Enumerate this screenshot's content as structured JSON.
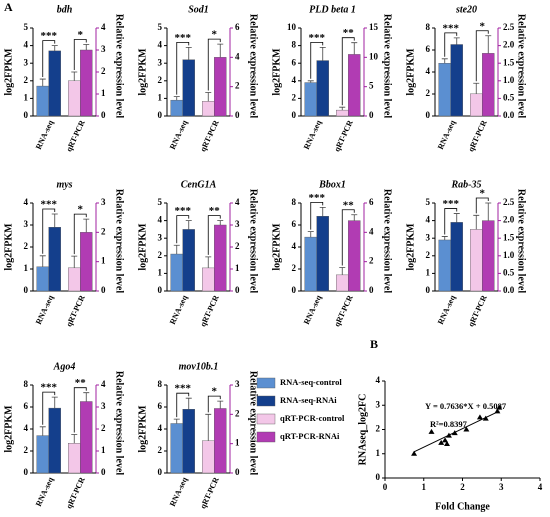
{
  "panel_labels": [
    "A",
    "B"
  ],
  "legend": [
    {
      "name": "RNA-seq-control",
      "color": "#5b8fd1"
    },
    {
      "name": "RNA-seq-RNAi",
      "color": "#143f8c"
    },
    {
      "name": "qRT-PCR-control",
      "color": "#f3c7e8"
    },
    {
      "name": "qRT-PCR-RNAi",
      "color": "#b13cb3"
    }
  ],
  "chart_data": [
    {
      "type": "bar",
      "title": "bdh",
      "ylabel": "log2FPKM",
      "y2label": "Relative expression level",
      "categories": [
        "RNA-seq",
        "qRT-PCR"
      ],
      "ylim": [
        0,
        5
      ],
      "yticks": [
        0,
        1,
        2,
        3,
        4,
        5
      ],
      "y2lim": [
        0,
        4
      ],
      "y2ticks": [
        0,
        1,
        2,
        3,
        4
      ],
      "annotations": [
        "***",
        "*"
      ],
      "series": [
        {
          "values": [
            1.7,
            null
          ],
          "errors": [
            0.4,
            null
          ]
        },
        {
          "values": [
            3.7,
            null
          ],
          "errors": [
            0.3,
            null
          ]
        },
        {
          "axis": "y2",
          "values": [
            null,
            1.6
          ],
          "errors": [
            null,
            0.4
          ]
        },
        {
          "axis": "y2",
          "values": [
            null,
            3.0
          ],
          "errors": [
            null,
            0.25
          ]
        }
      ]
    },
    {
      "type": "bar",
      "title": "Sod1",
      "ylabel": "log2FPKM",
      "y2label": "Relative expression level",
      "categories": [
        "RNA-seq",
        "qRT-PCR"
      ],
      "ylim": [
        0,
        5
      ],
      "yticks": [
        0,
        1,
        2,
        3,
        4,
        5
      ],
      "y2lim": [
        0,
        6
      ],
      "y2ticks": [
        0,
        2,
        4,
        6
      ],
      "annotations": [
        "***",
        "*"
      ],
      "series": [
        {
          "values": [
            0.9,
            null
          ],
          "errors": [
            0.2,
            null
          ]
        },
        {
          "values": [
            3.2,
            null
          ],
          "errors": [
            0.7,
            null
          ]
        },
        {
          "axis": "y2",
          "values": [
            null,
            1.0
          ],
          "errors": [
            null,
            0.6
          ]
        },
        {
          "axis": "y2",
          "values": [
            null,
            4.0
          ],
          "errors": [
            null,
            0.9
          ]
        }
      ]
    },
    {
      "type": "bar",
      "title": "PLD beta 1",
      "ylabel": "log2FPKM",
      "y2label": "Relative expression level",
      "categories": [
        "RNA-seq",
        "qRT-PCR"
      ],
      "ylim": [
        0,
        10
      ],
      "yticks": [
        0,
        2,
        4,
        6,
        8,
        10
      ],
      "y2lim": [
        0,
        15
      ],
      "y2ticks": [
        0,
        5,
        10,
        15
      ],
      "annotations": [
        "***",
        "**"
      ],
      "series": [
        {
          "values": [
            3.8,
            null
          ],
          "errors": [
            0.2,
            null
          ]
        },
        {
          "values": [
            6.3,
            null
          ],
          "errors": [
            1.5,
            null
          ]
        },
        {
          "axis": "y2",
          "values": [
            null,
            1.0
          ],
          "errors": [
            null,
            0.5
          ]
        },
        {
          "axis": "y2",
          "values": [
            null,
            10.5
          ],
          "errors": [
            null,
            2.0
          ]
        }
      ]
    },
    {
      "type": "bar",
      "title": "ste20",
      "ylabel": "log2FPKM",
      "y2label": "Relative expression level",
      "categories": [
        "RNA-seq",
        "qRT-PCR"
      ],
      "ylim": [
        0,
        8
      ],
      "yticks": [
        0,
        2,
        4,
        6,
        8
      ],
      "y2lim": [
        0,
        2.5
      ],
      "y2ticks": [
        {
          "value": 0,
          "label": "0.0"
        },
        0.5,
        {
          "value": 1,
          "label": "1.0"
        },
        1.5,
        {
          "value": 2,
          "label": "2.0"
        },
        2.5
      ],
      "annotations": [
        "***",
        "*"
      ],
      "series": [
        {
          "values": [
            4.8,
            null
          ],
          "errors": [
            0.4,
            null
          ]
        },
        {
          "values": [
            6.5,
            null
          ],
          "errors": [
            0.6,
            null
          ]
        },
        {
          "axis": "y2",
          "values": [
            null,
            0.63
          ],
          "errors": [
            null,
            0.3
          ]
        },
        {
          "axis": "y2",
          "values": [
            null,
            1.78
          ],
          "errors": [
            null,
            0.5
          ]
        }
      ]
    },
    {
      "type": "bar",
      "title": "mys",
      "ylabel": "log2FPKM",
      "y2label": "Relative expression level",
      "categories": [
        "RNA-seq",
        "qRT-PCR"
      ],
      "ylim": [
        0,
        4
      ],
      "yticks": [
        0,
        1,
        2,
        3,
        4
      ],
      "y2lim": [
        0,
        3
      ],
      "y2ticks": [
        0,
        1,
        2,
        3
      ],
      "annotations": [
        "***",
        "*"
      ],
      "series": [
        {
          "values": [
            1.1,
            null
          ],
          "errors": [
            0.5,
            null
          ]
        },
        {
          "values": [
            2.9,
            null
          ],
          "errors": [
            0.6,
            null
          ]
        },
        {
          "axis": "y2",
          "values": [
            null,
            0.79
          ],
          "errors": [
            null,
            0.4
          ]
        },
        {
          "axis": "y2",
          "values": [
            null,
            2.0
          ],
          "errors": [
            null,
            0.45
          ]
        }
      ]
    },
    {
      "type": "bar",
      "title": "CenG1A",
      "ylabel": "log2FPKM",
      "y2label": "Relative expression level",
      "categories": [
        "RNA-seq",
        "qRT-PCR"
      ],
      "ylim": [
        0,
        5
      ],
      "yticks": [
        0,
        1,
        2,
        3,
        4,
        5
      ],
      "y2lim": [
        0,
        4
      ],
      "y2ticks": [
        0,
        1,
        2,
        3,
        4
      ],
      "annotations": [
        "***",
        "**"
      ],
      "series": [
        {
          "values": [
            2.1,
            null
          ],
          "errors": [
            0.5,
            null
          ]
        },
        {
          "values": [
            3.5,
            null
          ],
          "errors": [
            0.5,
            null
          ]
        },
        {
          "axis": "y2",
          "values": [
            null,
            1.05
          ],
          "errors": [
            null,
            0.5
          ]
        },
        {
          "axis": "y2",
          "values": [
            null,
            3.0
          ],
          "errors": [
            null,
            0.2
          ]
        }
      ]
    },
    {
      "type": "bar",
      "title": "Bbox1",
      "ylabel": "log2FPKM",
      "y2label": "Relative expression level",
      "categories": [
        "RNA-seq",
        "qRT-PCR"
      ],
      "ylim": [
        0,
        8
      ],
      "yticks": [
        0,
        2,
        4,
        6,
        8
      ],
      "y2lim": [
        0,
        6
      ],
      "y2ticks": [
        0,
        2,
        4,
        6
      ],
      "annotations": [
        "***",
        "**"
      ],
      "series": [
        {
          "values": [
            4.9,
            null
          ],
          "errors": [
            0.5,
            null
          ]
        },
        {
          "values": [
            6.8,
            null
          ],
          "errors": [
            0.8,
            null
          ]
        },
        {
          "axis": "y2",
          "values": [
            null,
            1.1
          ],
          "errors": [
            null,
            0.5
          ]
        },
        {
          "axis": "y2",
          "values": [
            null,
            4.8
          ],
          "errors": [
            null,
            0.4
          ]
        }
      ]
    },
    {
      "type": "bar",
      "title": "Rab-35",
      "ylabel": "log2FPKM",
      "y2label": "Relative expression level",
      "categories": [
        "RNA-seq",
        "qRT-PCR"
      ],
      "ylim": [
        0,
        5
      ],
      "yticks": [
        0,
        1,
        2,
        3,
        4,
        5
      ],
      "y2lim": [
        0,
        2.5
      ],
      "y2ticks": [
        {
          "value": 0,
          "label": "0.0"
        },
        0.5,
        {
          "value": 1,
          "label": "1.0"
        },
        1.5,
        {
          "value": 2,
          "label": "2.0"
        },
        2.5
      ],
      "annotations": [
        "***",
        "*"
      ],
      "series": [
        {
          "values": [
            2.9,
            null
          ],
          "errors": [
            0.2,
            null
          ]
        },
        {
          "values": [
            3.9,
            null
          ],
          "errors": [
            0.5,
            null
          ]
        },
        {
          "axis": "y2",
          "values": [
            null,
            1.75
          ],
          "errors": [
            null,
            0.4
          ]
        },
        {
          "axis": "y2",
          "values": [
            null,
            2.0
          ],
          "errors": [
            null,
            0.5
          ]
        }
      ]
    },
    {
      "type": "bar",
      "title": "Ago4",
      "ylabel": "log2FPKM",
      "y2label": "Relative expression level",
      "categories": [
        "RNA-seq",
        "qRT-PCR"
      ],
      "ylim": [
        0,
        8
      ],
      "yticks": [
        0,
        2,
        4,
        6,
        8
      ],
      "y2lim": [
        0,
        4
      ],
      "y2ticks": [
        0,
        1,
        2,
        3,
        4
      ],
      "annotations": [
        "***",
        "**"
      ],
      "series": [
        {
          "values": [
            3.4,
            null
          ],
          "errors": [
            0.8,
            null
          ]
        },
        {
          "values": [
            5.9,
            null
          ],
          "errors": [
            1.0,
            null
          ]
        },
        {
          "axis": "y2",
          "values": [
            null,
            1.35
          ],
          "errors": [
            null,
            0.4
          ]
        },
        {
          "axis": "y2",
          "values": [
            null,
            3.25
          ],
          "errors": [
            null,
            0.4
          ]
        }
      ]
    },
    {
      "type": "bar",
      "title": "mov10b.1",
      "ylabel": "log2FPKM",
      "y2label": "Relative expression level",
      "categories": [
        "RNA-seq",
        "qRT-PCR"
      ],
      "ylim": [
        0,
        8
      ],
      "yticks": [
        0,
        2,
        4,
        6,
        8
      ],
      "y2lim": [
        0,
        3
      ],
      "y2ticks": [
        0,
        1,
        2,
        3
      ],
      "annotations": [
        "***",
        "*"
      ],
      "series": [
        {
          "values": [
            4.5,
            null
          ],
          "errors": [
            0.4,
            null
          ]
        },
        {
          "values": [
            5.8,
            null
          ],
          "errors": [
            1.0,
            null
          ]
        },
        {
          "axis": "y2",
          "values": [
            null,
            1.1
          ],
          "errors": [
            null,
            0.9
          ]
        },
        {
          "axis": "y2",
          "values": [
            null,
            2.2
          ],
          "errors": [
            null,
            0.25
          ]
        }
      ]
    },
    {
      "type": "scatter",
      "xlabel": "Fold Change",
      "ylabel": "RNAseq_log2FC",
      "annotations": [
        "Y = 0.7636*X + 0.5087",
        "R²=0.8397"
      ],
      "slope": 0.7636,
      "intercept": 0.5087,
      "color": "#000000",
      "xlim": [
        0,
        4
      ],
      "xticks": [
        0,
        1,
        2,
        3,
        4
      ],
      "ylim": [
        0,
        4
      ],
      "yticks": [
        0,
        1,
        2,
        3,
        4
      ],
      "x": [
        0.75,
        1.2,
        1.45,
        1.55,
        1.6,
        1.65,
        1.8,
        2.1,
        2.45,
        2.6,
        2.9,
        2.95
      ],
      "values": [
        1.0,
        1.9,
        1.45,
        1.55,
        1.4,
        1.75,
        1.85,
        2.0,
        2.5,
        2.45,
        2.75,
        2.9
      ]
    }
  ]
}
